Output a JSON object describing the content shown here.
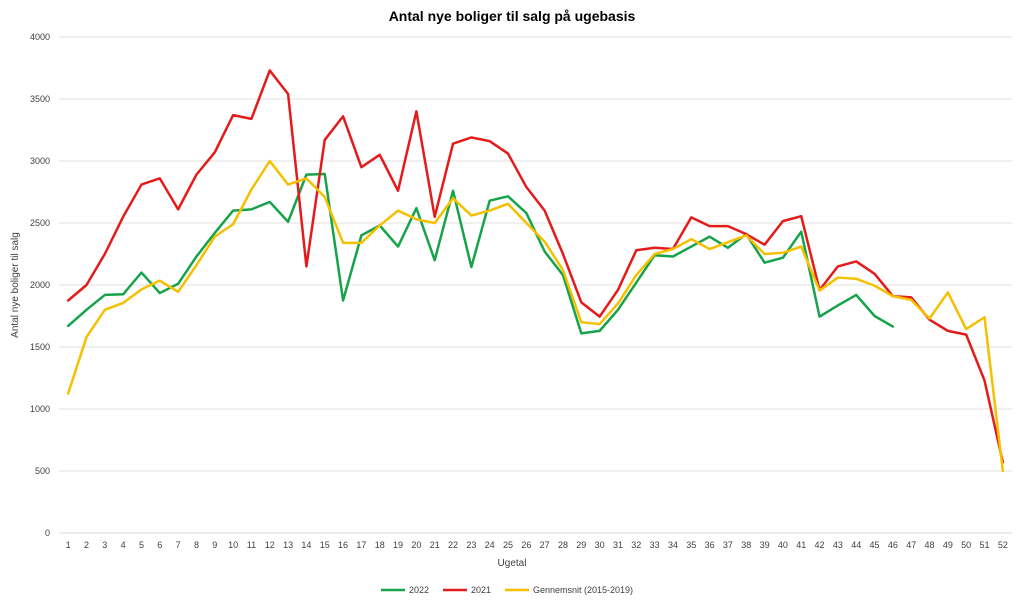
{
  "chart_data": {
    "type": "line",
    "title": "Antal nye boliger til salg på ugebasis",
    "xlabel": "Ugetal",
    "ylabel": "Antal nye boliger til salg",
    "ylim": [
      0,
      4000
    ],
    "yticks": [
      0,
      500,
      1000,
      1500,
      2000,
      2500,
      3000,
      3500,
      4000
    ],
    "grid": true,
    "legend_position": "bottom",
    "categories": [
      "1",
      "2",
      "3",
      "4",
      "5",
      "6",
      "7",
      "8",
      "9",
      "10",
      "11",
      "12",
      "13",
      "14",
      "15",
      "16",
      "17",
      "18",
      "19",
      "20",
      "21",
      "22",
      "23",
      "24",
      "25",
      "26",
      "27",
      "28",
      "29",
      "30",
      "31",
      "32",
      "33",
      "34",
      "35",
      "36",
      "37",
      "38",
      "39",
      "40",
      "41",
      "42",
      "43",
      "44",
      "45",
      "46",
      "47",
      "48",
      "49",
      "50",
      "51",
      "52"
    ],
    "series": [
      {
        "name": "2022",
        "color": "#16a34a",
        "values": [
          1670,
          1800,
          1920,
          1925,
          2100,
          1935,
          2010,
          2230,
          2420,
          2600,
          2610,
          2670,
          2510,
          2890,
          2895,
          1875,
          2400,
          2480,
          2310,
          2620,
          2200,
          2760,
          2145,
          2680,
          2715,
          2580,
          2270,
          2080,
          1610,
          1630,
          1800,
          2020,
          2240,
          2230,
          2310,
          2390,
          2300,
          2410,
          2180,
          2220,
          2430,
          1745,
          1835,
          1920,
          1750,
          1665,
          null,
          null,
          null,
          null,
          null,
          null
        ]
      },
      {
        "name": "2021",
        "color": "#e31b1b",
        "values": [
          1875,
          2000,
          2250,
          2550,
          2810,
          2860,
          2610,
          2890,
          3070,
          3370,
          3340,
          3730,
          3540,
          2150,
          3170,
          3360,
          2950,
          3050,
          2760,
          3400,
          2550,
          3140,
          3190,
          3160,
          3060,
          2790,
          2600,
          2250,
          1860,
          1745,
          1960,
          2280,
          2300,
          2290,
          2545,
          2475,
          2475,
          2410,
          2325,
          2515,
          2555,
          1960,
          2150,
          2190,
          2090,
          1910,
          1900,
          1720,
          1630,
          1600,
          1230,
          570
        ]
      },
      {
        "name": "Gennemsnit (2015-2019)",
        "color": "#f5c000",
        "values": [
          1125,
          1580,
          1800,
          1855,
          1965,
          2035,
          1945,
          2160,
          2390,
          2490,
          2770,
          3000,
          2810,
          2860,
          2710,
          2340,
          2340,
          2480,
          2600,
          2530,
          2500,
          2700,
          2560,
          2600,
          2655,
          2500,
          2350,
          2120,
          1700,
          1685,
          1850,
          2080,
          2250,
          2290,
          2370,
          2290,
          2345,
          2400,
          2250,
          2260,
          2310,
          1955,
          2060,
          2050,
          1995,
          1910,
          1880,
          1730,
          1940,
          1645,
          1740,
          500
        ]
      }
    ]
  }
}
